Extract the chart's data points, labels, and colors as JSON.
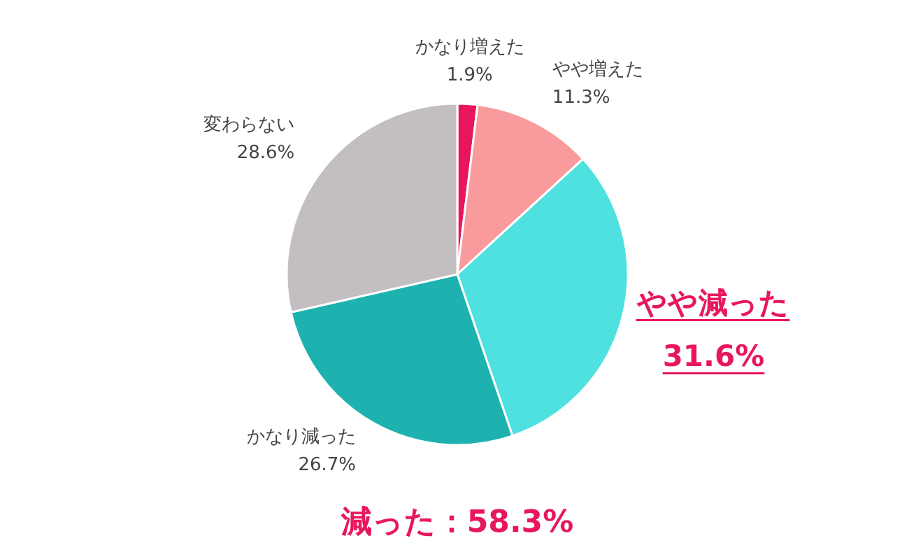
{
  "chart_data": {
    "type": "pie",
    "categories": [
      "かなり増えた",
      "やや増えた",
      "やや減った",
      "かなり減った",
      "変わらない"
    ],
    "values": [
      1.9,
      11.3,
      31.6,
      26.7,
      28.6
    ],
    "colors": [
      "#e8175d",
      "#f99a9c",
      "#4ee1e0",
      "#1db2b0",
      "#c2bec2"
    ],
    "value_labels": [
      "1.9%",
      "11.3%",
      "31.6%",
      "26.7%",
      "28.6%"
    ],
    "annotations": [
      "減った：58.3%"
    ]
  }
}
